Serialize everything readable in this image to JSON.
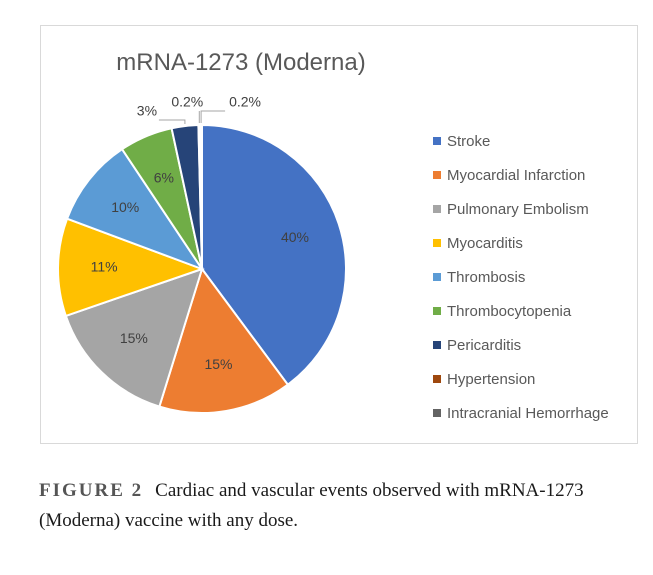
{
  "chart_data": {
    "type": "pie",
    "title": "mRNA-1273 (Moderna)",
    "categories": [
      "Stroke",
      "Myocardial Infarction",
      "Pulmonary Embolism",
      "Myocarditis",
      "Thrombosis",
      "Thrombocytopenia",
      "Pericarditis",
      "Hypertension",
      "Intracranial Hemorrhage"
    ],
    "values": [
      40,
      15,
      15,
      11,
      10,
      6,
      3,
      0.2,
      0.2
    ],
    "data_labels": [
      "40%",
      "15%",
      "15%",
      "11%",
      "10%",
      "6%",
      "3%",
      "0.2%",
      "0.2%"
    ],
    "colors": [
      "#4472C4",
      "#ED7D31",
      "#A5A5A5",
      "#FFC000",
      "#5B9BD5",
      "#70AD47",
      "#264478",
      "#9E480E",
      "#636363"
    ],
    "legend_position": "right"
  },
  "caption": {
    "figure_label": "FIGURE 2",
    "text": "Cardiac and vascular events observed with mRNA-1273 (Moderna) vaccine with any dose."
  }
}
